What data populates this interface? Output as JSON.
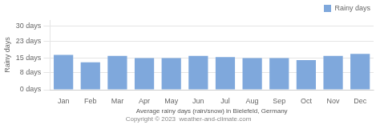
{
  "chart_data": {
    "type": "bar",
    "categories": [
      "Jan",
      "Feb",
      "Mar",
      "Apr",
      "May",
      "Jun",
      "Jul",
      "Aug",
      "Sep",
      "Oct",
      "Nov",
      "Dec"
    ],
    "series": [
      {
        "name": "Rainy days",
        "color": "#7fa8dc",
        "values": [
          16.5,
          13,
          16,
          15,
          15,
          16,
          15.5,
          15,
          15,
          14,
          16,
          17
        ]
      }
    ],
    "ylabel": "Rainy days",
    "xlabel": "Average rainy days (rain/snow) in Bielefeld, Germany",
    "annotations": [
      "Copyright © 2023  weather-and-climate.com"
    ],
    "ylim": [
      0,
      33
    ],
    "yticks": [
      {
        "value": 0,
        "label": "0 days"
      },
      {
        "value": 8,
        "label": "8 days"
      },
      {
        "value": 15,
        "label": "15 days"
      },
      {
        "value": 23,
        "label": "23 days"
      },
      {
        "value": 30,
        "label": "30 days"
      }
    ],
    "grid": "y",
    "legend": "upper right"
  }
}
